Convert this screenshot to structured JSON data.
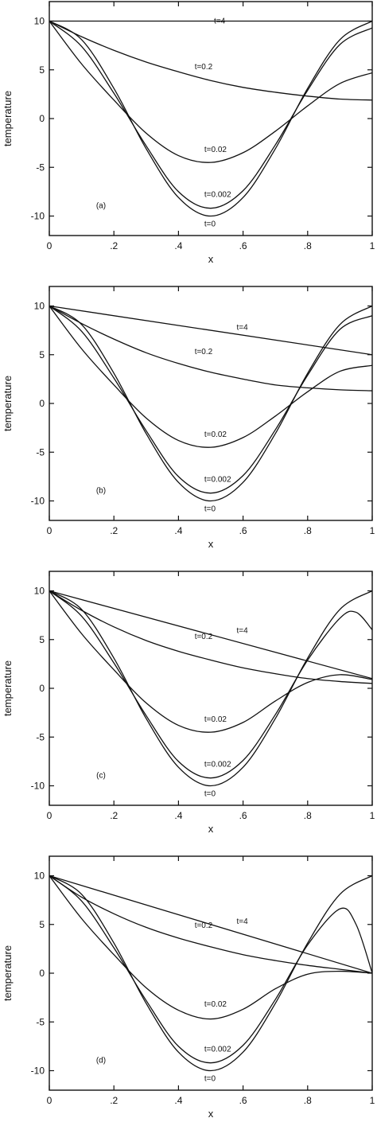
{
  "chart_data": [
    {
      "type": "line",
      "panel_label": "(a)",
      "xlabel": "x",
      "ylabel": "temperature",
      "xlim": [
        0,
        1
      ],
      "ylim": [
        -12,
        12
      ],
      "x_ticks": [
        {
          "v": 0,
          "label": "0"
        },
        {
          "v": 0.2,
          "label": ".2"
        },
        {
          "v": 0.4,
          "label": ".4"
        },
        {
          "v": 0.6,
          "label": ".6"
        },
        {
          "v": 0.8,
          "label": ".8"
        },
        {
          "v": 1,
          "label": "1"
        }
      ],
      "y_ticks": [
        {
          "v": 10,
          "label": "10"
        },
        {
          "v": 5,
          "label": "5"
        },
        {
          "v": 0,
          "label": "0"
        },
        {
          "v": -5,
          "label": "-5"
        },
        {
          "v": -10,
          "label": "-10"
        }
      ],
      "series": [
        {
          "name": "t=0",
          "x": [
            0,
            0.1,
            0.2,
            0.3,
            0.4,
            0.5,
            0.6,
            0.7,
            0.8,
            0.9,
            1
          ],
          "y": [
            10,
            8.1,
            3.1,
            -3.1,
            -8.1,
            -10,
            -8.1,
            -3.1,
            3.1,
            8.1,
            10
          ],
          "label_at": [
            0.48,
            -10.8
          ]
        },
        {
          "name": "t=0.002",
          "x": [
            0,
            0.1,
            0.2,
            0.3,
            0.4,
            0.5,
            0.6,
            0.7,
            0.8,
            0.9,
            1
          ],
          "y": [
            10,
            7.4,
            2.6,
            -2.8,
            -7.5,
            -9.2,
            -7.4,
            -2.7,
            2.9,
            7.6,
            9.3
          ],
          "label_at": [
            0.48,
            -7.8
          ]
        },
        {
          "name": "t=0.02",
          "x": [
            0,
            0.1,
            0.2,
            0.3,
            0.4,
            0.5,
            0.6,
            0.7,
            0.8,
            0.9,
            1
          ],
          "y": [
            10,
            5.6,
            1.9,
            -1.5,
            -3.8,
            -4.5,
            -3.5,
            -1.3,
            1.3,
            3.6,
            4.7
          ],
          "label_at": [
            0.48,
            -3.2
          ]
        },
        {
          "name": "t=0.2",
          "x": [
            0,
            0.1,
            0.2,
            0.3,
            0.4,
            0.5,
            0.6,
            0.7,
            0.8,
            0.9,
            1
          ],
          "y": [
            10,
            8.4,
            7.0,
            5.8,
            4.8,
            3.9,
            3.2,
            2.7,
            2.3,
            2.0,
            1.9
          ],
          "label_at": [
            0.45,
            5.3
          ]
        },
        {
          "name": "t=4",
          "x": [
            0,
            1
          ],
          "y": [
            10,
            10
          ],
          "label_at": [
            0.51,
            10.0
          ]
        }
      ]
    },
    {
      "type": "line",
      "panel_label": "(b)",
      "xlabel": "x",
      "ylabel": "temperature",
      "xlim": [
        0,
        1
      ],
      "ylim": [
        -12,
        12
      ],
      "x_ticks": [
        {
          "v": 0,
          "label": "0"
        },
        {
          "v": 0.2,
          "label": ".2"
        },
        {
          "v": 0.4,
          "label": ".4"
        },
        {
          "v": 0.6,
          "label": ".6"
        },
        {
          "v": 0.8,
          "label": ".8"
        },
        {
          "v": 1,
          "label": "1"
        }
      ],
      "y_ticks": [
        {
          "v": 10,
          "label": "10"
        },
        {
          "v": 5,
          "label": "5"
        },
        {
          "v": 0,
          "label": "0"
        },
        {
          "v": -5,
          "label": "-5"
        },
        {
          "v": -10,
          "label": "-10"
        }
      ],
      "series": [
        {
          "name": "t=0",
          "x": [
            0,
            0.1,
            0.2,
            0.3,
            0.4,
            0.5,
            0.6,
            0.7,
            0.8,
            0.9,
            1
          ],
          "y": [
            10,
            8.1,
            3.1,
            -3.1,
            -8.1,
            -10,
            -8.1,
            -3.1,
            3.1,
            8.1,
            10
          ],
          "label_at": [
            0.48,
            -10.8
          ]
        },
        {
          "name": "t=0.002",
          "x": [
            0,
            0.1,
            0.2,
            0.3,
            0.4,
            0.5,
            0.6,
            0.7,
            0.8,
            0.9,
            1
          ],
          "y": [
            10,
            7.4,
            2.6,
            -2.8,
            -7.5,
            -9.2,
            -7.4,
            -2.7,
            2.9,
            7.6,
            9.0
          ],
          "label_at": [
            0.48,
            -7.8
          ]
        },
        {
          "name": "t=0.02",
          "x": [
            0,
            0.1,
            0.2,
            0.3,
            0.4,
            0.5,
            0.6,
            0.7,
            0.8,
            0.9,
            1
          ],
          "y": [
            10,
            5.6,
            1.9,
            -1.5,
            -3.8,
            -4.5,
            -3.5,
            -1.3,
            1.2,
            3.3,
            3.9
          ],
          "label_at": [
            0.48,
            -3.2
          ]
        },
        {
          "name": "t=0.2",
          "x": [
            0,
            0.1,
            0.2,
            0.3,
            0.4,
            0.5,
            0.6,
            0.7,
            0.8,
            0.9,
            1
          ],
          "y": [
            10,
            8.2,
            6.6,
            5.2,
            4.1,
            3.2,
            2.5,
            1.9,
            1.6,
            1.4,
            1.3
          ],
          "label_at": [
            0.45,
            5.3
          ]
        },
        {
          "name": "t=4",
          "x": [
            0,
            1
          ],
          "y": [
            10,
            5
          ],
          "label_at": [
            0.58,
            7.8
          ]
        }
      ]
    },
    {
      "type": "line",
      "panel_label": "(c)",
      "xlabel": "x",
      "ylabel": "temperature",
      "xlim": [
        0,
        1
      ],
      "ylim": [
        -12,
        12
      ],
      "x_ticks": [
        {
          "v": 0,
          "label": "0"
        },
        {
          "v": 0.2,
          "label": ".2"
        },
        {
          "v": 0.4,
          "label": ".4"
        },
        {
          "v": 0.6,
          "label": ".6"
        },
        {
          "v": 0.8,
          "label": ".8"
        },
        {
          "v": 1,
          "label": "1"
        }
      ],
      "y_ticks": [
        {
          "v": 10,
          "label": "10"
        },
        {
          "v": 5,
          "label": "5"
        },
        {
          "v": 0,
          "label": "0"
        },
        {
          "v": -5,
          "label": "-5"
        },
        {
          "v": -10,
          "label": "-10"
        }
      ],
      "series": [
        {
          "name": "t=0",
          "x": [
            0,
            0.1,
            0.2,
            0.3,
            0.4,
            0.5,
            0.6,
            0.7,
            0.8,
            0.9,
            1
          ],
          "y": [
            10,
            8.1,
            3.1,
            -3.1,
            -8.1,
            -10,
            -8.1,
            -3.1,
            3.1,
            8.1,
            10
          ],
          "label_at": [
            0.48,
            -10.8
          ]
        },
        {
          "name": "t=0.002",
          "x": [
            0,
            0.1,
            0.2,
            0.3,
            0.4,
            0.5,
            0.6,
            0.7,
            0.8,
            0.9,
            0.95,
            1
          ],
          "y": [
            10,
            7.4,
            2.6,
            -2.8,
            -7.5,
            -9.2,
            -7.4,
            -2.7,
            2.9,
            7.2,
            7.8,
            6.0
          ],
          "label_at": [
            0.48,
            -7.8
          ]
        },
        {
          "name": "t=0.02",
          "x": [
            0,
            0.1,
            0.2,
            0.3,
            0.4,
            0.5,
            0.6,
            0.7,
            0.8,
            0.9,
            1
          ],
          "y": [
            10,
            5.6,
            1.9,
            -1.5,
            -3.8,
            -4.5,
            -3.5,
            -1.3,
            0.6,
            1.4,
            0.9
          ],
          "label_at": [
            0.48,
            -3.2
          ]
        },
        {
          "name": "t=0.2",
          "x": [
            0,
            0.1,
            0.2,
            0.3,
            0.4,
            0.5,
            0.6,
            0.7,
            0.8,
            0.9,
            1
          ],
          "y": [
            10,
            8.0,
            6.3,
            4.9,
            3.8,
            2.9,
            2.1,
            1.5,
            1.0,
            0.7,
            0.5
          ],
          "label_at": [
            0.45,
            5.3
          ]
        },
        {
          "name": "t=4",
          "x": [
            0,
            1
          ],
          "y": [
            10,
            1
          ],
          "label_at": [
            0.58,
            5.9
          ]
        }
      ]
    },
    {
      "type": "line",
      "panel_label": "(d)",
      "xlabel": "x",
      "ylabel": "temperature",
      "xlim": [
        0,
        1
      ],
      "ylim": [
        -12,
        12
      ],
      "x_ticks": [
        {
          "v": 0,
          "label": "0"
        },
        {
          "v": 0.2,
          "label": ".2"
        },
        {
          "v": 0.4,
          "label": ".4"
        },
        {
          "v": 0.6,
          "label": ".6"
        },
        {
          "v": 0.8,
          "label": ".8"
        },
        {
          "v": 1,
          "label": "1"
        }
      ],
      "y_ticks": [
        {
          "v": 10,
          "label": "10"
        },
        {
          "v": 5,
          "label": "5"
        },
        {
          "v": 0,
          "label": "0"
        },
        {
          "v": -5,
          "label": "-5"
        },
        {
          "v": -10,
          "label": "-10"
        }
      ],
      "series": [
        {
          "name": "t=0",
          "x": [
            0,
            0.1,
            0.2,
            0.3,
            0.4,
            0.5,
            0.6,
            0.7,
            0.8,
            0.9,
            1
          ],
          "y": [
            10,
            8.1,
            3.1,
            -3.1,
            -8.1,
            -10,
            -8.1,
            -3.1,
            3.1,
            8.1,
            10
          ],
          "label_at": [
            0.48,
            -10.8
          ]
        },
        {
          "name": "t=0.002",
          "x": [
            0,
            0.1,
            0.2,
            0.3,
            0.4,
            0.5,
            0.6,
            0.7,
            0.8,
            0.9,
            0.95,
            1
          ],
          "y": [
            10,
            7.4,
            2.6,
            -2.8,
            -7.5,
            -9.2,
            -7.4,
            -2.7,
            2.9,
            6.6,
            5.0,
            0
          ],
          "label_at": [
            0.48,
            -7.8
          ]
        },
        {
          "name": "t=0.02",
          "x": [
            0,
            0.1,
            0.2,
            0.3,
            0.4,
            0.5,
            0.6,
            0.7,
            0.8,
            0.9,
            1
          ],
          "y": [
            10,
            5.6,
            1.9,
            -1.5,
            -3.8,
            -4.7,
            -3.7,
            -1.6,
            -0.1,
            0.2,
            0
          ],
          "label_at": [
            0.48,
            -3.2
          ]
        },
        {
          "name": "t=0.2",
          "x": [
            0,
            0.1,
            0.2,
            0.3,
            0.4,
            0.5,
            0.6,
            0.7,
            0.8,
            0.9,
            1
          ],
          "y": [
            10,
            7.8,
            6.1,
            4.7,
            3.6,
            2.7,
            1.9,
            1.3,
            0.8,
            0.4,
            0
          ],
          "label_at": [
            0.45,
            4.9
          ]
        },
        {
          "name": "t=4",
          "x": [
            0,
            1
          ],
          "y": [
            10,
            0
          ],
          "label_at": [
            0.58,
            5.3
          ]
        }
      ]
    }
  ]
}
